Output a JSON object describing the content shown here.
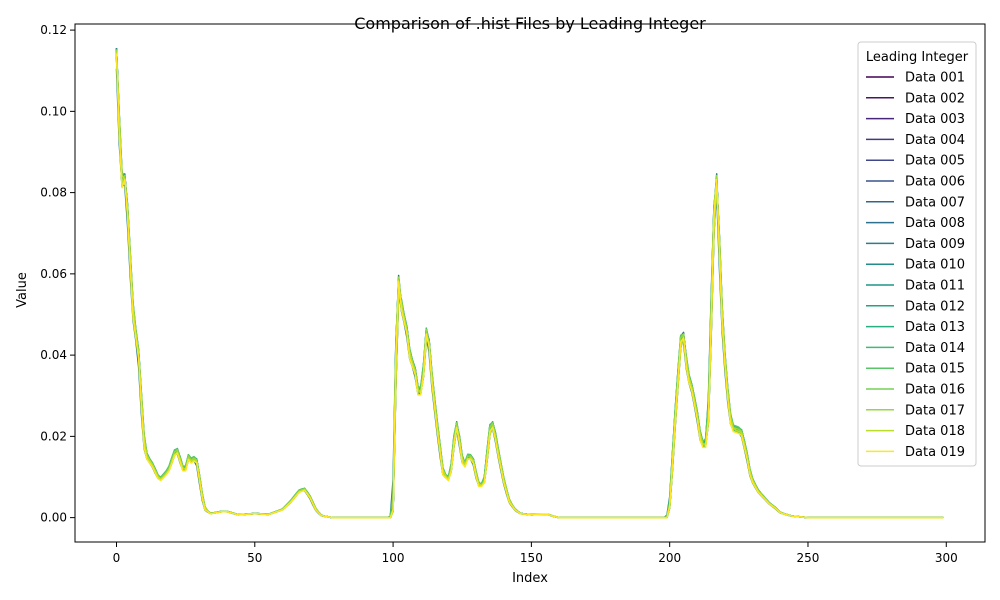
{
  "chart_data": {
    "type": "line",
    "title": "Comparison of .hist Files by Leading Integer",
    "xlabel": "Index",
    "ylabel": "Value",
    "xlim": [
      -15,
      314
    ],
    "ylim": [
      -0.006,
      0.1215
    ],
    "xticks": [
      0,
      50,
      100,
      150,
      200,
      250,
      300
    ],
    "yticks": [
      0.0,
      0.02,
      0.04,
      0.06,
      0.08,
      0.1,
      0.12
    ],
    "ytick_labels": [
      "0.00",
      "0.02",
      "0.04",
      "0.06",
      "0.08",
      "0.10",
      "0.12"
    ],
    "legend_title": "Leading Integer",
    "legend_position": "top-right",
    "base_profile_index_step": 1,
    "base_profile": {
      "keypoints": [
        [
          0,
          0.115
        ],
        [
          1,
          0.095
        ],
        [
          2,
          0.082
        ],
        [
          3,
          0.084
        ],
        [
          4,
          0.075
        ],
        [
          5,
          0.062
        ],
        [
          6,
          0.05
        ],
        [
          7,
          0.045
        ],
        [
          8,
          0.04
        ],
        [
          9,
          0.028
        ],
        [
          10,
          0.018
        ],
        [
          11,
          0.015
        ],
        [
          13,
          0.013
        ],
        [
          15,
          0.01
        ],
        [
          16,
          0.0095
        ],
        [
          18,
          0.011
        ],
        [
          19,
          0.012
        ],
        [
          21,
          0.016
        ],
        [
          22,
          0.0165
        ],
        [
          24,
          0.012
        ],
        [
          25,
          0.012
        ],
        [
          26,
          0.015
        ],
        [
          27,
          0.014
        ],
        [
          28,
          0.0145
        ],
        [
          29,
          0.014
        ],
        [
          31,
          0.005
        ],
        [
          32,
          0.002
        ],
        [
          34,
          0.001
        ],
        [
          38,
          0.0015
        ],
        [
          40,
          0.0015
        ],
        [
          44,
          0.0007
        ],
        [
          50,
          0.001
        ],
        [
          55,
          0.0008
        ],
        [
          60,
          0.002
        ],
        [
          63,
          0.004
        ],
        [
          66,
          0.0065
        ],
        [
          68,
          0.007
        ],
        [
          70,
          0.005
        ],
        [
          72,
          0.002
        ],
        [
          74,
          0.0005
        ],
        [
          78,
          0.0
        ],
        [
          99,
          0.0
        ],
        [
          100,
          0.002
        ],
        [
          101,
          0.04
        ],
        [
          102,
          0.059
        ],
        [
          103,
          0.052
        ],
        [
          105,
          0.046
        ],
        [
          106,
          0.04
        ],
        [
          108,
          0.036
        ],
        [
          109,
          0.031
        ],
        [
          110,
          0.031
        ],
        [
          111,
          0.036
        ],
        [
          112,
          0.046
        ],
        [
          113,
          0.043
        ],
        [
          114,
          0.034
        ],
        [
          116,
          0.022
        ],
        [
          118,
          0.011
        ],
        [
          120,
          0.0095
        ],
        [
          121,
          0.012
        ],
        [
          122,
          0.019
        ],
        [
          123,
          0.023
        ],
        [
          124,
          0.019
        ],
        [
          125,
          0.014
        ],
        [
          126,
          0.013
        ],
        [
          127,
          0.015
        ],
        [
          128,
          0.015
        ],
        [
          129,
          0.014
        ],
        [
          130,
          0.0105
        ],
        [
          131,
          0.008
        ],
        [
          132,
          0.008
        ],
        [
          133,
          0.009
        ],
        [
          135,
          0.022
        ],
        [
          136,
          0.023
        ],
        [
          137,
          0.02
        ],
        [
          138,
          0.016
        ],
        [
          140,
          0.009
        ],
        [
          142,
          0.004
        ],
        [
          144,
          0.002
        ],
        [
          146,
          0.001
        ],
        [
          150,
          0.0007
        ],
        [
          154,
          0.0008
        ],
        [
          156,
          0.0008
        ],
        [
          158,
          0.0003
        ],
        [
          160,
          0.0
        ],
        [
          199,
          0.0
        ],
        [
          200,
          0.003
        ],
        [
          202,
          0.025
        ],
        [
          204,
          0.044
        ],
        [
          205,
          0.045
        ],
        [
          206,
          0.038
        ],
        [
          207,
          0.034
        ],
        [
          208,
          0.032
        ],
        [
          210,
          0.025
        ],
        [
          211,
          0.02
        ],
        [
          212,
          0.018
        ],
        [
          213,
          0.018
        ],
        [
          214,
          0.025
        ],
        [
          215,
          0.05
        ],
        [
          216,
          0.075
        ],
        [
          217,
          0.084
        ],
        [
          218,
          0.065
        ],
        [
          219,
          0.048
        ],
        [
          220,
          0.038
        ],
        [
          221,
          0.03
        ],
        [
          222,
          0.024
        ],
        [
          223,
          0.022
        ],
        [
          225,
          0.0215
        ],
        [
          226,
          0.021
        ],
        [
          228,
          0.015
        ],
        [
          229,
          0.011
        ],
        [
          230,
          0.009
        ],
        [
          232,
          0.0065
        ],
        [
          234,
          0.005
        ],
        [
          236,
          0.0035
        ],
        [
          238,
          0.0025
        ],
        [
          240,
          0.0012
        ],
        [
          244,
          0.0004
        ],
        [
          250,
          0.0
        ],
        [
          299,
          0.0
        ]
      ]
    },
    "series": [
      {
        "name": "Data 001",
        "color": "#440154",
        "offset": 0.0,
        "shift": 0.0
      },
      {
        "name": "Data 002",
        "color": "#481467",
        "offset": 0.0004,
        "shift": 0.1
      },
      {
        "name": "Data 003",
        "color": "#482576",
        "offset": -0.0003,
        "shift": 0.2
      },
      {
        "name": "Data 004",
        "color": "#453781",
        "offset": 0.0005,
        "shift": 0.1
      },
      {
        "name": "Data 005",
        "color": "#3f4788",
        "offset": -0.0004,
        "shift": 0.0
      },
      {
        "name": "Data 006",
        "color": "#39558c",
        "offset": 0.0003,
        "shift": -0.1
      },
      {
        "name": "Data 007",
        "color": "#32648e",
        "offset": -0.0002,
        "shift": 0.1
      },
      {
        "name": "Data 008",
        "color": "#2d718e",
        "offset": 0.0006,
        "shift": 0.0
      },
      {
        "name": "Data 009",
        "color": "#287d8e",
        "offset": -0.0005,
        "shift": -0.2
      },
      {
        "name": "Data 010",
        "color": "#238a8d",
        "offset": 0.0002,
        "shift": 0.2
      },
      {
        "name": "Data 011",
        "color": "#1f968b",
        "offset": -0.0001,
        "shift": 0.1
      },
      {
        "name": "Data 012",
        "color": "#20a386",
        "offset": 0.0007,
        "shift": -0.1
      },
      {
        "name": "Data 013",
        "color": "#29af7f",
        "offset": -0.0006,
        "shift": 0.0
      },
      {
        "name": "Data 014",
        "color": "#3dbc74",
        "offset": 0.0004,
        "shift": 0.2
      },
      {
        "name": "Data 015",
        "color": "#56c667",
        "offset": 0.0008,
        "shift": -0.1
      },
      {
        "name": "Data 016",
        "color": "#75d054",
        "offset": -0.0004,
        "shift": 0.1
      },
      {
        "name": "Data 017",
        "color": "#95d840",
        "offset": 0.0002,
        "shift": 0.0
      },
      {
        "name": "Data 018",
        "color": "#bade28",
        "offset": -0.0003,
        "shift": 0.2
      },
      {
        "name": "Data 019",
        "color": "#fde725",
        "offset": -0.0008,
        "shift": 0.0
      }
    ]
  }
}
